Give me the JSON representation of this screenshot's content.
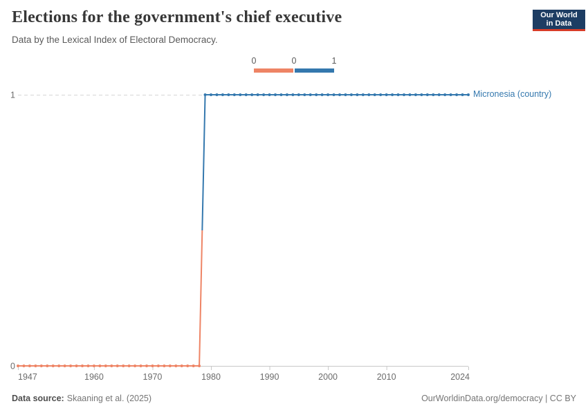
{
  "header": {
    "title": "Elections for the government's chief executive",
    "subtitle": "Data by the Lexical Index of Electoral Democracy.",
    "logo": {
      "line1": "Our World",
      "line2": "in Data",
      "bg_color": "#1d3d63",
      "accent_color": "#d73c28"
    }
  },
  "legend": {
    "labels": [
      "0",
      "0",
      "1"
    ],
    "bins": [
      {
        "label": "0",
        "color": "#ee8465"
      },
      {
        "label": "1",
        "color": "#3478ae"
      }
    ]
  },
  "chart_data": {
    "type": "line",
    "title": "Elections for the government's chief executive",
    "subtitle": "Data by the Lexical Index of Electoral Democracy.",
    "entity": "Micronesia (country)",
    "series_label": "Micronesia (country)",
    "series_color": "#3478ae",
    "x_range": [
      1947,
      2024
    ],
    "ylim": [
      0,
      1
    ],
    "y_ticks": [
      0,
      1
    ],
    "x_tick_labels": [
      1947,
      1960,
      1970,
      1980,
      1990,
      2000,
      2010,
      2024
    ],
    "grid": "dashed horizontal gridline at y=1, solid axis line at y=0",
    "legend_position": "top-center",
    "marker": "circle at every year",
    "segments": [
      {
        "value": 0,
        "from_year": 1947,
        "to_year": 1978,
        "color": "#ee8465"
      },
      {
        "value": 1,
        "from_year": 1979,
        "to_year": 2024,
        "color": "#3478ae"
      }
    ]
  },
  "footer": {
    "source_prefix": "Data source:",
    "source": "Skaaning et al. (2025)",
    "license": "OurWorldinData.org/democracy | CC BY"
  }
}
